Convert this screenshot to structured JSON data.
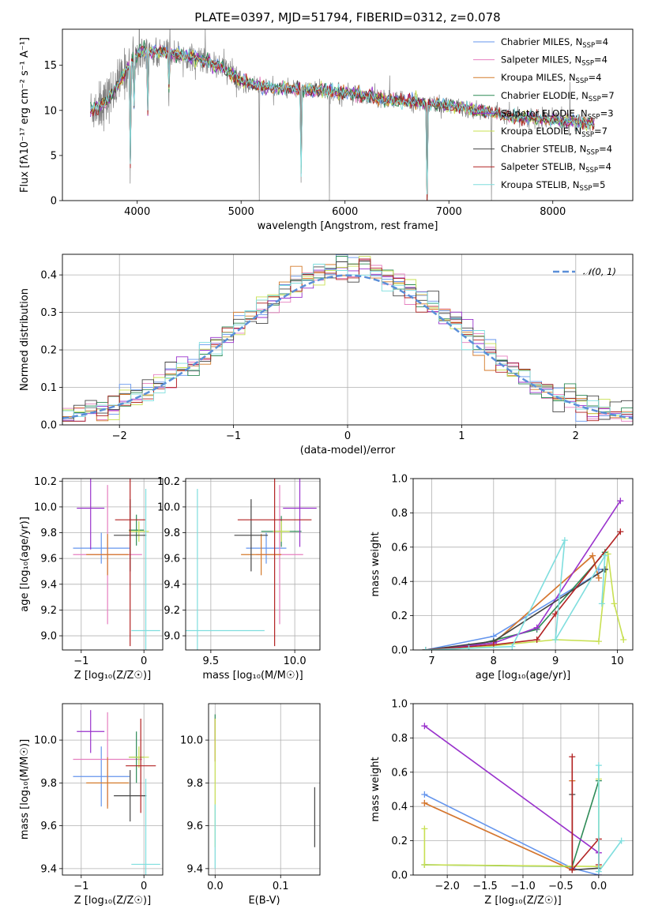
{
  "figure": {
    "title": "PLATE=0397, MJD=51794, FIBERID=0312, z=0.078"
  },
  "models": [
    {
      "name": "Chabrier MILES",
      "nssp": "4",
      "color": "#6495ed"
    },
    {
      "name": "Salpeter MILES",
      "nssp": "4",
      "color": "#e67fbf"
    },
    {
      "name": "Kroupa MILES",
      "nssp": "4",
      "color": "#d47a2a"
    },
    {
      "name": "Chabrier ELODIE",
      "nssp": "7",
      "color": "#2e8b57"
    },
    {
      "name": "Salpeter ELODIE",
      "nssp": "3",
      "color": "#9932cc"
    },
    {
      "name": "Kroupa ELODIE",
      "nssp": "7",
      "color": "#c8e052"
    },
    {
      "name": "Chabrier STELIB",
      "nssp": "4",
      "color": "#444444"
    },
    {
      "name": "Salpeter STELIB",
      "nssp": "4",
      "color": "#b22222"
    },
    {
      "name": "Kroupa STELIB",
      "nssp": "5",
      "color": "#7fdede"
    }
  ],
  "chart_data": [
    {
      "type": "line",
      "panel": "spectrum",
      "xlabel": "wavelength [Angstrom, rest frame]",
      "ylabel": "Flux [fλ10⁻¹⁷ erg cm⁻² s⁻¹ A⁻¹]",
      "xlim": [
        3280,
        8770
      ],
      "ylim": [
        0,
        19
      ],
      "xticks": [
        4000,
        5000,
        6000,
        7000,
        8000
      ],
      "yticks": [
        0,
        5,
        10,
        15
      ],
      "grid": false,
      "legend": "right",
      "data_color": "#808080",
      "continuum": {
        "x": [
          3550,
          3700,
          3850,
          3950,
          4000,
          4100,
          4300,
          4500,
          4800,
          5000,
          5300,
          5600,
          6000,
          6300,
          6600,
          7000,
          7300,
          7600,
          7900,
          8200,
          8400
        ],
        "y": [
          10.0,
          11.0,
          13.5,
          15.5,
          16.3,
          16.5,
          16.4,
          16.0,
          15.0,
          13.2,
          12.5,
          12.3,
          12.0,
          11.4,
          11.0,
          10.5,
          10.0,
          9.3,
          9.0,
          8.7,
          8.5
        ]
      },
      "absorption_lines": [
        {
          "x": 3933,
          "y": 0
        },
        {
          "x": 3969,
          "y": 8.5
        },
        {
          "x": 4101,
          "y": 7.5
        },
        {
          "x": 4304,
          "y": 8.5
        },
        {
          "x": 5175,
          "y": 0
        },
        {
          "x": 5577,
          "y": 0.5
        },
        {
          "x": 5850,
          "y": 0
        },
        {
          "x": 6790,
          "y": 0
        },
        {
          "x": 7410,
          "y": 0
        }
      ]
    },
    {
      "type": "line",
      "panel": "residual-distribution",
      "xlabel": "(data-model)/error",
      "ylabel": "Normed distribution",
      "xlim": [
        -2.5,
        2.5
      ],
      "ylim": [
        0,
        0.455
      ],
      "xticks": [
        -2,
        -1,
        0,
        1,
        2
      ],
      "yticks": [
        0.0,
        0.1,
        0.2,
        0.3,
        0.4
      ],
      "grid": true,
      "legend": "top-right",
      "gaussian_label": "𝒩(0, 1)",
      "gaussian_color": "#5b8fd8"
    },
    {
      "type": "scatter",
      "panel": "age-vs-Z",
      "xlabel": "Z [log₁₀(Z/Z☉)]",
      "ylabel": "age  [log₁₀(age/yr)]",
      "xlim": [
        -1.3,
        0.3
      ],
      "ylim": [
        8.89,
        10.22
      ],
      "xticks": [
        -1,
        0
      ],
      "yticks": [
        9.0,
        9.2,
        9.4,
        9.6,
        9.8,
        10.0,
        10.2
      ],
      "grid": true,
      "points": [
        {
          "model": 0,
          "x": -0.68,
          "y": 9.68,
          "xerr": 0.45,
          "yerr": 0.12
        },
        {
          "model": 1,
          "x": -0.58,
          "y": 9.63,
          "xerr": 0.55,
          "yerr": 0.54
        },
        {
          "model": 2,
          "x": -0.58,
          "y": 9.63,
          "xerr": 0.34,
          "yerr": 0.16
        },
        {
          "model": 3,
          "x": -0.12,
          "y": 9.82,
          "xerr": 0.12,
          "yerr": 0.12
        },
        {
          "model": 4,
          "x": -0.85,
          "y": 9.99,
          "xerr": 0.22,
          "yerr": 0.32
        },
        {
          "model": 5,
          "x": -0.08,
          "y": 9.81,
          "xerr": 0.16,
          "yerr": 0.08
        },
        {
          "model": 6,
          "x": -0.22,
          "y": 9.78,
          "xerr": 0.26,
          "yerr": 0.28
        },
        {
          "model": 7,
          "x": -0.22,
          "y": 9.9,
          "xerr": 0.24,
          "yerr": 0.98
        },
        {
          "model": 8,
          "x": 0.03,
          "y": 9.04,
          "xerr": 0.23,
          "yerr": 1.1
        }
      ]
    },
    {
      "type": "scatter",
      "panel": "age-vs-mass",
      "xlabel": "mass [log₁₀(M/M☉)]",
      "ylabel": "",
      "xlim": [
        9.35,
        10.15
      ],
      "ylim": [
        8.89,
        10.22
      ],
      "xticks": [
        9.5,
        10.0
      ],
      "yticks": [
        9.0,
        9.2,
        9.4,
        9.6,
        9.8,
        10.0,
        10.2
      ],
      "grid": true,
      "points": [
        {
          "model": 0,
          "x": 9.83,
          "y": 9.68,
          "xerr": 0.12,
          "yerr": 0.12
        },
        {
          "model": 1,
          "x": 9.91,
          "y": 9.63,
          "xerr": 0.14,
          "yerr": 0.54
        },
        {
          "model": 2,
          "x": 9.8,
          "y": 9.63,
          "xerr": 0.12,
          "yerr": 0.16
        },
        {
          "model": 3,
          "x": 9.92,
          "y": 9.81,
          "xerr": 0.12,
          "yerr": 0.12
        },
        {
          "model": 4,
          "x": 10.03,
          "y": 9.99,
          "xerr": 0.1,
          "yerr": 0.3
        },
        {
          "model": 5,
          "x": 9.92,
          "y": 9.81,
          "xerr": 0.05,
          "yerr": 0.08
        },
        {
          "model": 6,
          "x": 9.74,
          "y": 9.78,
          "xerr": 0.1,
          "yerr": 0.28
        },
        {
          "model": 7,
          "x": 9.88,
          "y": 9.9,
          "xerr": 0.22,
          "yerr": 0.98
        },
        {
          "model": 8,
          "x": 9.42,
          "y": 9.04,
          "xerr": 0.4,
          "yerr": 1.1
        }
      ]
    },
    {
      "type": "line",
      "panel": "mass-weight-vs-age",
      "xlabel": "age  [log₁₀(age/yr)]",
      "ylabel": "mass weight",
      "xlim": [
        6.7,
        10.25
      ],
      "ylim": [
        0,
        1.0
      ],
      "xticks": [
        7,
        8,
        9,
        10
      ],
      "yticks": [
        0.0,
        0.2,
        0.4,
        0.6,
        0.8,
        1.0
      ],
      "grid": true,
      "series": [
        {
          "model": 0,
          "x": [
            6.9,
            8.0,
            9.8,
            9.7
          ],
          "y": [
            0.0,
            0.08,
            0.47,
            0.47
          ]
        },
        {
          "model": 1,
          "x": [
            6.9,
            8.0,
            9.6,
            9.7
          ],
          "y": [
            0.0,
            0.04,
            0.55,
            0.42
          ]
        },
        {
          "model": 2,
          "x": [
            6.9,
            8.0,
            9.6,
            9.7
          ],
          "y": [
            0.0,
            0.04,
            0.55,
            0.42
          ]
        },
        {
          "model": 3,
          "x": [
            6.9,
            7.6,
            8.7,
            9.8
          ],
          "y": [
            0.0,
            0.02,
            0.12,
            0.57
          ]
        },
        {
          "model": 4,
          "x": [
            6.9,
            8.0,
            8.7,
            10.05
          ],
          "y": [
            0.0,
            0.04,
            0.13,
            0.87
          ]
        },
        {
          "model": 5,
          "x": [
            6.9,
            7.6,
            9.0,
            9.7,
            9.85,
            9.95,
            10.1
          ],
          "y": [
            0.0,
            0.01,
            0.06,
            0.05,
            0.56,
            0.27,
            0.06
          ]
        },
        {
          "model": 6,
          "x": [
            6.9,
            8.0,
            9.8,
            9.8
          ],
          "y": [
            0.0,
            0.05,
            0.47,
            0.47
          ]
        },
        {
          "model": 7,
          "x": [
            6.9,
            8.0,
            8.7,
            9.0,
            10.05
          ],
          "y": [
            0.0,
            0.03,
            0.06,
            0.21,
            0.69
          ]
        },
        {
          "model": 8,
          "x": [
            6.9,
            7.6,
            8.3,
            9.15,
            9.0,
            9.8,
            9.75
          ],
          "y": [
            0.0,
            0.01,
            0.02,
            0.64,
            0.06,
            0.55,
            0.27
          ]
        }
      ]
    },
    {
      "type": "scatter",
      "panel": "mass-vs-Z",
      "xlabel": "Z [log₁₀(Z/Z☉)]",
      "ylabel": "mass [log₁₀(M/M☉)]",
      "xlim": [
        -1.3,
        0.3
      ],
      "ylim": [
        9.37,
        10.17
      ],
      "xticks": [
        -1,
        0
      ],
      "yticks": [
        9.4,
        9.6,
        9.8,
        10.0
      ],
      "grid": true,
      "points": [
        {
          "model": 0,
          "x": -0.68,
          "y": 9.83,
          "xerr": 0.45,
          "yerr": 0.14
        },
        {
          "model": 1,
          "x": -0.58,
          "y": 9.91,
          "xerr": 0.55,
          "yerr": 0.22
        },
        {
          "model": 2,
          "x": -0.58,
          "y": 9.8,
          "xerr": 0.34,
          "yerr": 0.12
        },
        {
          "model": 3,
          "x": -0.12,
          "y": 9.92,
          "xerr": 0.12,
          "yerr": 0.12
        },
        {
          "model": 4,
          "x": -0.85,
          "y": 10.04,
          "xerr": 0.22,
          "yerr": 0.1
        },
        {
          "model": 5,
          "x": -0.08,
          "y": 9.92,
          "xerr": 0.16,
          "yerr": 0.05
        },
        {
          "model": 6,
          "x": -0.22,
          "y": 9.74,
          "xerr": 0.26,
          "yerr": 0.12
        },
        {
          "model": 7,
          "x": -0.05,
          "y": 9.88,
          "xerr": 0.24,
          "yerr": 0.22
        },
        {
          "model": 8,
          "x": 0.03,
          "y": 9.42,
          "xerr": 0.23,
          "yerr": 0.4
        }
      ]
    },
    {
      "type": "scatter",
      "panel": "mass-vs-EBV",
      "xlabel": "E(B-V)",
      "ylabel": "",
      "xlim": [
        -0.01,
        0.16
      ],
      "ylim": [
        9.37,
        10.17
      ],
      "xticks": [
        0.0,
        0.1
      ],
      "yticks": [
        9.4,
        9.6,
        9.8,
        10.0
      ],
      "grid": true,
      "points": [
        {
          "model": 3,
          "x": 0.0,
          "y": 10.06,
          "xerr": 0.0,
          "yerr": 0.06
        },
        {
          "model": 7,
          "x": 0.0,
          "y": 10.0,
          "xerr": 0.0,
          "yerr": 0.1
        },
        {
          "model": 5,
          "x": 0.0,
          "y": 9.8,
          "xerr": 0.0,
          "yerr": 0.3
        },
        {
          "model": 8,
          "x": 0.0,
          "y": 9.55,
          "xerr": 0.0,
          "yerr": 0.15
        },
        {
          "model": 6,
          "x": 0.152,
          "y": 9.64,
          "xerr": 0.0,
          "yerr": 0.14
        }
      ]
    },
    {
      "type": "line",
      "panel": "mass-weight-vs-Z",
      "xlabel": "Z [log₁₀(Z/Z☉)]",
      "ylabel": "mass weight",
      "xlim": [
        -2.45,
        0.45
      ],
      "ylim": [
        0,
        1.0
      ],
      "xticks": [
        -2.0,
        -1.5,
        -1.0,
        -0.5,
        0.0
      ],
      "yticks": [
        0.0,
        0.2,
        0.4,
        0.6,
        0.8,
        1.0
      ],
      "grid": true,
      "series": [
        {
          "model": 0,
          "x": [
            -2.3,
            -0.35,
            0.0
          ],
          "y": [
            0.47,
            0.04,
            0.0
          ]
        },
        {
          "model": 1,
          "x": [
            -2.3,
            -0.35,
            -0.35
          ],
          "y": [
            0.42,
            0.03,
            0.55
          ]
        },
        {
          "model": 2,
          "x": [
            -2.3,
            -0.35,
            -0.35
          ],
          "y": [
            0.42,
            0.03,
            0.55
          ]
        },
        {
          "model": 3,
          "x": [
            -2.3,
            -0.35,
            0.0
          ],
          "y": [
            0.06,
            0.05,
            0.55
          ]
        },
        {
          "model": 4,
          "x": [
            -2.3,
            0.0,
            0.0
          ],
          "y": [
            0.87,
            0.13,
            0.0
          ]
        },
        {
          "model": 5,
          "x": [
            -2.3,
            -2.3,
            0.0,
            0.0
          ],
          "y": [
            0.27,
            0.06,
            0.05,
            0.56
          ]
        },
        {
          "model": 6,
          "x": [
            -0.35,
            -0.35,
            0.0
          ],
          "y": [
            0.47,
            0.03,
            0.04
          ]
        },
        {
          "model": 7,
          "x": [
            -0.35,
            -0.35,
            0.0,
            0.0
          ],
          "y": [
            0.69,
            0.03,
            0.21,
            0.06
          ]
        },
        {
          "model": 8,
          "x": [
            0.0,
            0.0,
            0.3
          ],
          "y": [
            0.64,
            0.02,
            0.2
          ]
        }
      ]
    }
  ]
}
